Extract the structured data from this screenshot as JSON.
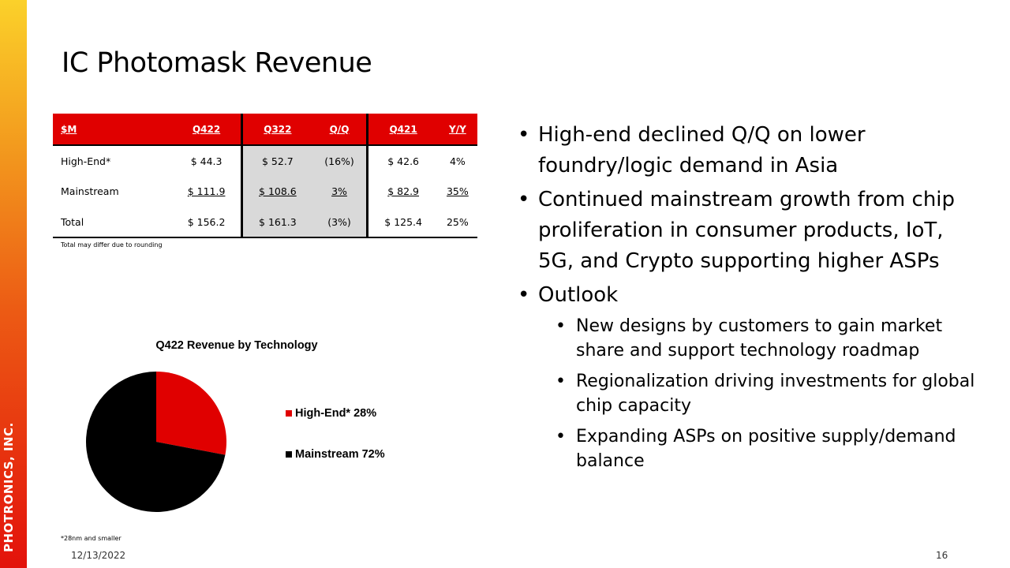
{
  "brand": "PHOTRONICS, INC.",
  "title": "IC Photomask Revenue",
  "table": {
    "headers": [
      "$M",
      "Q422",
      "Q322",
      "Q/Q",
      "Q421",
      "Y/Y"
    ],
    "rows": [
      [
        "High-End*",
        "$ 44.3",
        "$ 52.7",
        "(16%)",
        "$ 42.6",
        "4%"
      ],
      [
        "Mainstream",
        "$ 111.9",
        "$ 108.6",
        "3%",
        "$ 82.9",
        "35%"
      ],
      [
        "Total",
        "$ 156.2",
        "$ 161.3",
        "(3%)",
        "$ 125.4",
        "25%"
      ]
    ],
    "note": "Total may differ due to rounding"
  },
  "chart_data": {
    "type": "pie",
    "title": "Q422 Revenue by Technology",
    "slices": [
      {
        "name": "High-End*",
        "value": 28,
        "label": "High-End* 28%",
        "color": "#e00000"
      },
      {
        "name": "Mainstream",
        "value": 72,
        "label": "Mainstream 72%",
        "color": "#000000"
      }
    ],
    "legend": "right"
  },
  "footnote": "*28nm and smaller",
  "date": "12/13/2022",
  "page": "16",
  "bullets": [
    {
      "text": "High-end declined Q/Q on lower foundry/logic demand in Asia",
      "level": 1
    },
    {
      "text": "Continued mainstream growth from chip proliferation in consumer products, IoT, 5G, and Crypto supporting higher ASPs",
      "level": 1
    },
    {
      "text": "Outlook",
      "level": 1
    },
    {
      "text": "New designs by customers to gain market share and support technology roadmap",
      "level": 2
    },
    {
      "text": "Regionalization driving investments for global chip capacity",
      "level": 2
    },
    {
      "text": "Expanding ASPs on positive supply/demand balance",
      "level": 2
    }
  ]
}
